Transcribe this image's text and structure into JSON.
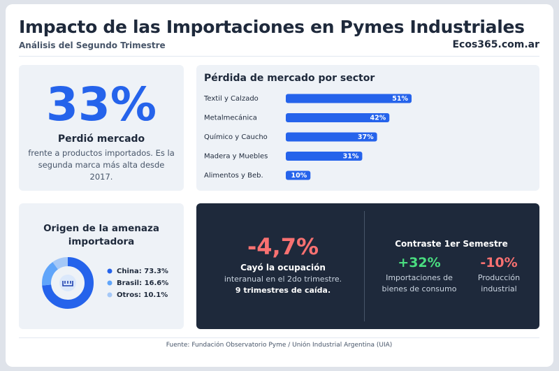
{
  "header": {
    "title": "Impacto de las Importaciones en Pymes Industriales",
    "subtitle": "Análisis del Segundo Trimestre",
    "site": "Ecos365.com.ar"
  },
  "kpi_main": {
    "value": "33%",
    "label": "Perdió mercado",
    "detail": "frente a productos importados. Es la segunda marca más alta desde 2017."
  },
  "kpi_jobs": {
    "value": "-4,7%",
    "label": "Cayó la ocupación",
    "detail": "interanual en el 2do trimestre.",
    "note": "9 trimestres de caída."
  },
  "contrast": {
    "title": "Contraste 1er Semestre",
    "items": [
      {
        "value": "+32%",
        "label": "Importaciones de bienes de consumo"
      },
      {
        "value": "-10%",
        "label": "Producción industrial"
      }
    ]
  },
  "footer": "Fuente: Fundación Observatorio Pyme / Unión Industrial Argentina (UIA)",
  "chart_data": [
    {
      "type": "bar",
      "orientation": "horizontal",
      "title": "Pérdida de mercado por sector",
      "categories": [
        "Textil y Calzado",
        "Metalmecánica",
        "Químico y Caucho",
        "Madera y Muebles",
        "Alimentos y Beb."
      ],
      "values": [
        51,
        42,
        37,
        31,
        10
      ],
      "value_labels": [
        "51%",
        "42%",
        "37%",
        "31%",
        "10%"
      ],
      "color": "#2563eb"
    },
    {
      "type": "donut",
      "title": "Origen de la amenaza importadora",
      "values": [
        73.3,
        16.6,
        10.1
      ],
      "value_labels": [
        "China: 73.3%",
        "Brasil: 16.6%",
        "Otros: 10.1%"
      ],
      "colors": [
        "#2563eb",
        "#60a5fa",
        "#a5c8f7"
      ]
    }
  ]
}
